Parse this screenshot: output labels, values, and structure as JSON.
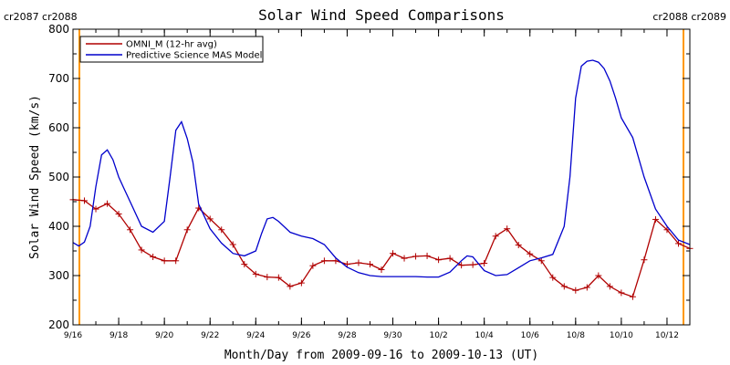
{
  "chart_data": {
    "type": "line",
    "title": "Solar Wind Speed Comparisons",
    "xlabel": "Month/Day from 2009-09-16 to 2009-10-13 (UT)",
    "ylabel": "Solar Wind Speed (km/s)",
    "ylim": [
      200,
      800
    ],
    "yticks": [
      200,
      300,
      400,
      500,
      600,
      700,
      800
    ],
    "xlim": [
      "2009-09-16",
      "2009-10-13"
    ],
    "xticks": [
      "9/16",
      "9/18",
      "9/20",
      "9/22",
      "9/24",
      "9/26",
      "9/28",
      "9/30",
      "10/2",
      "10/4",
      "10/6",
      "10/8",
      "10/10",
      "10/12"
    ],
    "grid": false,
    "legend_position": "top-left",
    "carrington_markers": [
      {
        "labels": [
          "cr2087",
          "cr2088"
        ],
        "date": "2009-09-16",
        "position": "left"
      },
      {
        "labels": [
          "cr2088",
          "cr2089"
        ],
        "date": "2009-10-13",
        "position": "right"
      }
    ],
    "colors": {
      "omni": "#b00000",
      "model": "#0000cc",
      "marker": "#ff9900"
    },
    "series": [
      {
        "name": "OMNI_M (12-hr avg)",
        "color": "#b00000",
        "marker": "+",
        "x": [
          "2009-09-16",
          "2009-09-16T12",
          "2009-09-17",
          "2009-09-17T12",
          "2009-09-18",
          "2009-09-18T12",
          "2009-09-19",
          "2009-09-19T12",
          "2009-09-20",
          "2009-09-20T12",
          "2009-09-21",
          "2009-09-21T12",
          "2009-09-22",
          "2009-09-22T12",
          "2009-09-23",
          "2009-09-23T12",
          "2009-09-24",
          "2009-09-24T12",
          "2009-09-25",
          "2009-09-25T12",
          "2009-09-26",
          "2009-09-26T12",
          "2009-09-27",
          "2009-09-27T12",
          "2009-09-28",
          "2009-09-28T12",
          "2009-09-29",
          "2009-09-29T12",
          "2009-09-30",
          "2009-09-30T12",
          "2009-10-01",
          "2009-10-01T12",
          "2009-10-02",
          "2009-10-02T12",
          "2009-10-03",
          "2009-10-03T12",
          "2009-10-04",
          "2009-10-04T12",
          "2009-10-05",
          "2009-10-05T12",
          "2009-10-06",
          "2009-10-06T12",
          "2009-10-07",
          "2009-10-07T12",
          "2009-10-08",
          "2009-10-08T12",
          "2009-10-09",
          "2009-10-09T12",
          "2009-10-10",
          "2009-10-10T12",
          "2009-10-11",
          "2009-10-11T12",
          "2009-10-12",
          "2009-10-12T12",
          "2009-10-13"
        ],
        "values": [
          454,
          452,
          435,
          446,
          425,
          393,
          352,
          338,
          330,
          330,
          393,
          437,
          415,
          393,
          363,
          323,
          303,
          297,
          296,
          278,
          285,
          320,
          330,
          330,
          323,
          326,
          323,
          312,
          345,
          335,
          339,
          340,
          332,
          335,
          321,
          322,
          325,
          380,
          395,
          362,
          344,
          330,
          296,
          278,
          270,
          276,
          300,
          278,
          265,
          257,
          332,
          414,
          393,
          365,
          355
        ]
      },
      {
        "name": "Predictive Science MAS Model",
        "color": "#0000cc",
        "x": [
          "2009-09-16",
          "2009-09-16T06",
          "2009-09-16T12",
          "2009-09-16T18",
          "2009-09-17",
          "2009-09-17T06",
          "2009-09-17T12",
          "2009-09-17T18",
          "2009-09-18",
          "2009-09-18T06",
          "2009-09-18T12",
          "2009-09-19",
          "2009-09-19T12",
          "2009-09-20",
          "2009-09-20T06",
          "2009-09-20T12",
          "2009-09-20T18",
          "2009-09-21",
          "2009-09-21T06",
          "2009-09-21T12",
          "2009-09-22",
          "2009-09-22T12",
          "2009-09-23",
          "2009-09-23T12",
          "2009-09-24",
          "2009-09-24T06",
          "2009-09-24T12",
          "2009-09-24T18",
          "2009-09-25",
          "2009-09-25T12",
          "2009-09-26",
          "2009-09-26T12",
          "2009-09-27",
          "2009-09-27T12",
          "2009-09-28",
          "2009-09-28T12",
          "2009-09-29",
          "2009-09-29T12",
          "2009-09-30",
          "2009-10-01",
          "2009-10-01T12",
          "2009-10-02",
          "2009-10-02T12",
          "2009-10-03",
          "2009-10-03T06",
          "2009-10-03T12",
          "2009-10-04",
          "2009-10-04T12",
          "2009-10-05",
          "2009-10-05T12",
          "2009-10-06",
          "2009-10-06T12",
          "2009-10-07",
          "2009-10-07T12",
          "2009-10-07T18",
          "2009-10-08",
          "2009-10-08T06",
          "2009-10-08T12",
          "2009-10-08T18",
          "2009-10-09",
          "2009-10-09T06",
          "2009-10-09T12",
          "2009-10-09T18",
          "2009-10-10",
          "2009-10-10T12",
          "2009-10-11",
          "2009-10-11T12",
          "2009-10-12",
          "2009-10-12T12",
          "2009-10-13"
        ],
        "values": [
          367,
          360,
          368,
          400,
          480,
          545,
          555,
          535,
          500,
          475,
          450,
          400,
          388,
          410,
          500,
          595,
          612,
          578,
          530,
          445,
          395,
          366,
          345,
          340,
          350,
          385,
          415,
          418,
          410,
          388,
          380,
          375,
          363,
          336,
          317,
          306,
          300,
          298,
          298,
          298,
          297,
          297,
          307,
          330,
          340,
          338,
          310,
          300,
          302,
          316,
          330,
          336,
          343,
          400,
          500,
          660,
          725,
          735,
          737,
          733,
          720,
          695,
          660,
          620,
          580,
          500,
          435,
          400,
          372,
          363
        ]
      }
    ]
  }
}
